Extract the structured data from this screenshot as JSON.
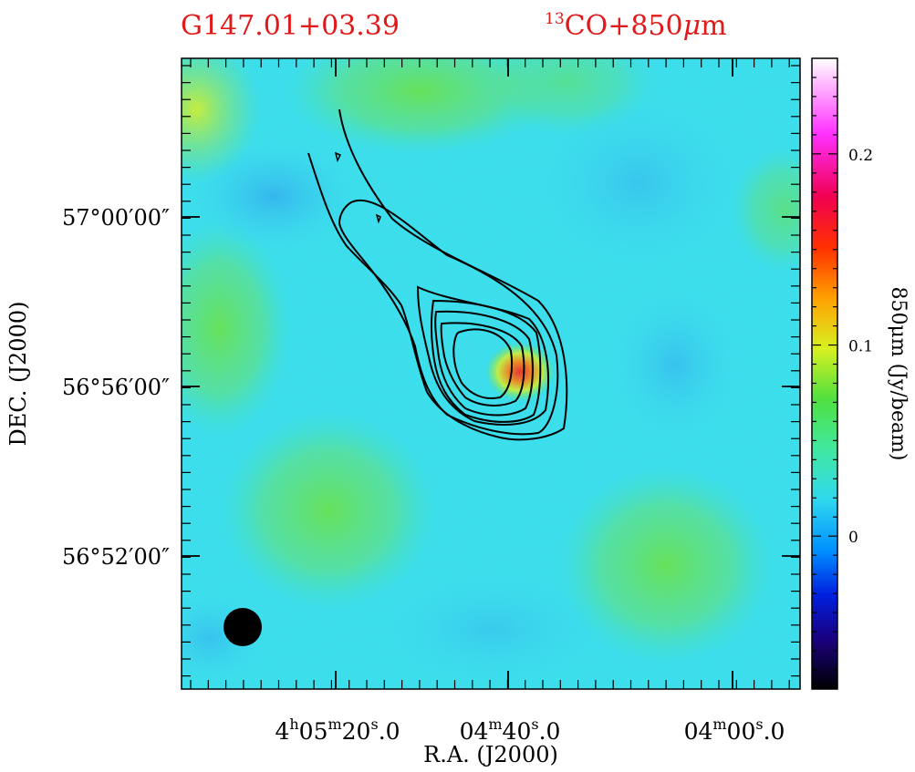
{
  "chart_data": {
    "type": "heatmap",
    "title_left": "G147.01+03.39",
    "title_right": {
      "sup": "13",
      "main": "CO+850",
      "mu": "μ",
      "unit": "m"
    },
    "xlabel": "R.A. (J2000)",
    "ylabel": "DEC. (J2000)",
    "x_ticks": [
      {
        "label": "4h05m20s.0",
        "parts": [
          "4",
          "h",
          "05",
          "m",
          "20",
          "s",
          ".0"
        ]
      },
      {
        "label": "04m40s.0",
        "parts": [
          "",
          "",
          "04",
          "m",
          "40",
          "s",
          ".0"
        ]
      },
      {
        "label": "04m00s.0",
        "parts": [
          "",
          "",
          "04",
          "m",
          "00",
          "s",
          ".0"
        ]
      }
    ],
    "y_ticks": [
      "57°00′00″",
      "56°56′00″",
      "56°52′00″"
    ],
    "colorbar": {
      "label": "850μm (Jy/beam)",
      "ticks": [
        {
          "value": 0.2,
          "label": "0.2"
        },
        {
          "value": 0.1,
          "label": "0.1"
        },
        {
          "value": 0,
          "label": "0"
        }
      ],
      "range": [
        -0.08,
        0.25
      ]
    },
    "map": {
      "background_value": 0.0,
      "peak_value": 0.17,
      "features": [
        "central compact source with contour emission extending to the north-west",
        "diffuse green (~0.04 Jy/beam) patches at left, top, lower-left and lower-right"
      ]
    },
    "contours": {
      "count": 7,
      "color": "#000000"
    },
    "beam": {
      "shape": "circle",
      "position": "bottom-left"
    }
  },
  "colors": {
    "title": "#e01a1a",
    "background_cyan": "#33ddee",
    "contour": "#000000"
  }
}
